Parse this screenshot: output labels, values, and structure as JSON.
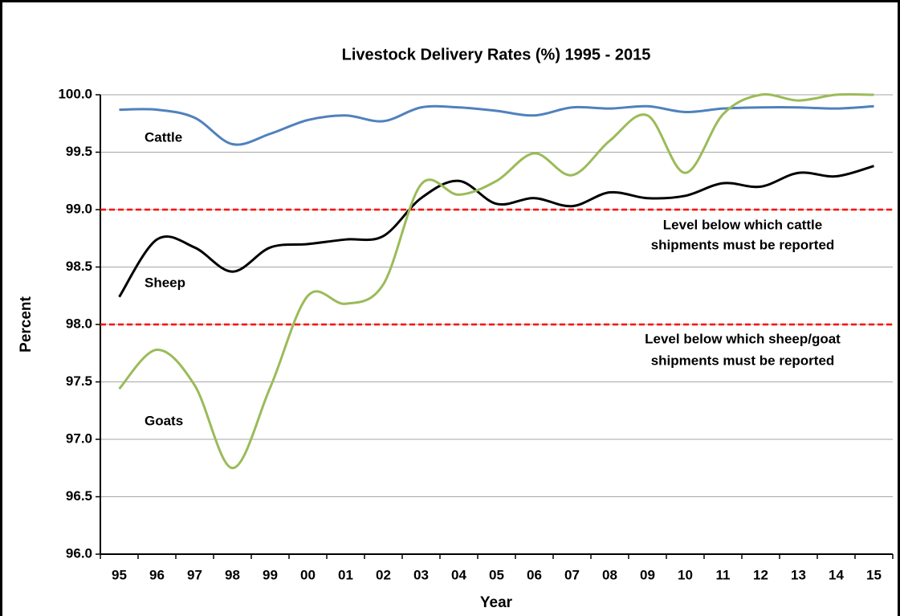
{
  "chart_data": {
    "type": "line",
    "title": "Livestock Delivery Rates (%) 1995 - 2015",
    "x_label": "Year",
    "y_label": "Percent",
    "categories": [
      "95",
      "96",
      "97",
      "98",
      "99",
      "00",
      "01",
      "02",
      "03",
      "04",
      "05",
      "06",
      "07",
      "08",
      "09",
      "10",
      "11",
      "12",
      "13",
      "14",
      "15"
    ],
    "series": [
      {
        "name": "Cattle",
        "color": "#4f81bd",
        "values": [
          99.87,
          99.87,
          99.8,
          99.57,
          99.66,
          99.78,
          99.82,
          99.77,
          99.89,
          99.89,
          99.86,
          99.82,
          99.89,
          99.88,
          99.9,
          99.85,
          99.88,
          99.89,
          99.89,
          99.88,
          99.9
        ]
      },
      {
        "name": "Sheep",
        "color": "#000000",
        "values": [
          98.24,
          98.74,
          98.67,
          98.46,
          98.67,
          98.7,
          98.74,
          98.77,
          99.1,
          99.25,
          99.05,
          99.1,
          99.03,
          99.15,
          99.1,
          99.12,
          99.23,
          99.2,
          99.32,
          99.29,
          99.38
        ]
      },
      {
        "name": "Goats",
        "color": "#9bbb59",
        "values": [
          97.44,
          97.78,
          97.47,
          96.75,
          97.45,
          98.25,
          98.18,
          98.35,
          99.22,
          99.13,
          99.25,
          99.49,
          99.3,
          99.6,
          99.82,
          99.32,
          99.83,
          100.0,
          99.95,
          100.0,
          100.0
        ]
      }
    ],
    "reference_lines": [
      {
        "value": 99,
        "color": "#ff0000",
        "label": [
          "Level below which cattle",
          "shipments must be reported"
        ]
      },
      {
        "value": 98,
        "color": "#ff0000",
        "label": [
          "Level below which sheep/goat",
          "shipments must be reported"
        ]
      }
    ],
    "ylim": [
      96,
      100
    ],
    "yticks": [
      {
        "value": 96,
        "label": "96.0"
      },
      96.5,
      {
        "value": 97,
        "label": "97.0"
      },
      97.5,
      {
        "value": 98,
        "label": "98.0"
      },
      98.5,
      {
        "value": 99,
        "label": "99.0"
      },
      99.5,
      {
        "value": 100,
        "label": "100.0"
      }
    ],
    "grid": true
  }
}
